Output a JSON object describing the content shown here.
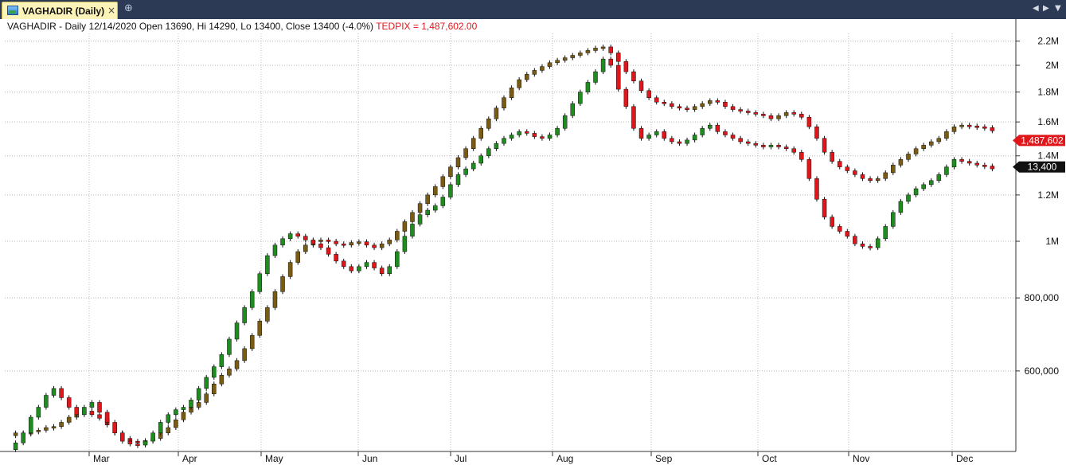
{
  "window": {
    "tab_label": "VAGHADIR (Daily)",
    "close_glyph": "×",
    "new_tab_glyph": "⊕",
    "prev_glyph": "◀",
    "next_glyph": "▶",
    "menu_glyph": "▼"
  },
  "header": {
    "main_text": "VAGHADIR - Daily 12/14/2020 Open 13690, Hi 14290, Lo 13400, Close 13400 (-4.0%)",
    "index_text": "TEDPIX = 1,487,602.00"
  },
  "colors": {
    "up": "#1e8c1e",
    "down": "#e0161b",
    "index_up": "#7a5b12",
    "index_down": "#e0161b",
    "grid": "#b8b8b8",
    "index_badge": "#e0161b",
    "price_badge": "#111111"
  },
  "chart_data": {
    "type": "candlestick",
    "scale": "log",
    "y_ticks": [
      "600,000",
      "800,000",
      "1M",
      "1.2M",
      "1.4M",
      "1.6M",
      "1.8M",
      "2M",
      "2.2M"
    ],
    "y_tick_values": [
      600000,
      800000,
      1000000,
      1200000,
      1400000,
      1600000,
      1800000,
      2000000,
      2200000
    ],
    "x_labels": [
      "Mar",
      "Apr",
      "May",
      "Jun",
      "Jul",
      "Aug",
      "Sep",
      "Oct",
      "Nov",
      "Dec"
    ],
    "last_index_label": "1,487,602",
    "last_price_label": "13,400",
    "series": [
      {
        "name": "TEDPIX",
        "points": [
          [
            0,
            465000
          ],
          [
            4,
            470000
          ],
          [
            8,
            468000
          ],
          [
            12,
            472000
          ],
          [
            16,
            475000
          ],
          [
            20,
            480000
          ],
          [
            24,
            482000
          ],
          [
            28,
            490000
          ],
          [
            32,
            500000
          ],
          [
            36,
            510000
          ],
          [
            40,
            512000
          ],
          [
            44,
            505000
          ],
          [
            48,
            498000
          ],
          [
            52,
            485000
          ],
          [
            56,
            470000
          ],
          [
            60,
            460000
          ],
          [
            64,
            455000
          ],
          [
            68,
            452000
          ],
          [
            72,
            456000
          ],
          [
            76,
            460000
          ],
          [
            80,
            470000
          ],
          [
            84,
            480000
          ],
          [
            88,
            495000
          ],
          [
            92,
            510000
          ],
          [
            96,
            520000
          ],
          [
            100,
            530000
          ],
          [
            104,
            548000
          ],
          [
            108,
            570000
          ],
          [
            112,
            590000
          ],
          [
            116,
            605000
          ],
          [
            120,
            625000
          ],
          [
            124,
            655000
          ],
          [
            128,
            690000
          ],
          [
            132,
            730000
          ],
          [
            136,
            770000
          ],
          [
            140,
            820000
          ],
          [
            144,
            870000
          ],
          [
            148,
            920000
          ],
          [
            152,
            960000
          ],
          [
            156,
            985000
          ],
          [
            160,
            1000000
          ],
          [
            164,
            1005000
          ],
          [
            168,
            1000000
          ],
          [
            172,
            990000
          ],
          [
            176,
            985000
          ],
          [
            180,
            995000
          ],
          [
            184,
            998000
          ],
          [
            188,
            985000
          ],
          [
            192,
            975000
          ],
          [
            196,
            990000
          ],
          [
            200,
            1005000
          ],
          [
            204,
            1040000
          ],
          [
            208,
            1080000
          ],
          [
            212,
            1120000
          ],
          [
            216,
            1160000
          ],
          [
            220,
            1200000
          ],
          [
            224,
            1240000
          ],
          [
            228,
            1290000
          ],
          [
            232,
            1340000
          ],
          [
            236,
            1390000
          ],
          [
            240,
            1440000
          ],
          [
            244,
            1500000
          ],
          [
            248,
            1560000
          ],
          [
            252,
            1620000
          ],
          [
            256,
            1690000
          ],
          [
            260,
            1760000
          ],
          [
            264,
            1830000
          ],
          [
            268,
            1890000
          ],
          [
            272,
            1930000
          ],
          [
            276,
            1960000
          ],
          [
            280,
            1990000
          ],
          [
            284,
            2020000
          ],
          [
            288,
            2040000
          ],
          [
            292,
            2060000
          ],
          [
            296,
            2080000
          ],
          [
            300,
            2100000
          ],
          [
            304,
            2120000
          ],
          [
            308,
            2140000
          ],
          [
            312,
            2150000
          ],
          [
            316,
            2100000
          ],
          [
            320,
            2030000
          ],
          [
            324,
            1950000
          ],
          [
            328,
            1880000
          ],
          [
            332,
            1810000
          ],
          [
            336,
            1760000
          ],
          [
            340,
            1730000
          ],
          [
            344,
            1720000
          ],
          [
            348,
            1700000
          ],
          [
            352,
            1690000
          ],
          [
            356,
            1680000
          ],
          [
            360,
            1700000
          ],
          [
            364,
            1720000
          ],
          [
            368,
            1740000
          ],
          [
            372,
            1730000
          ],
          [
            376,
            1700000
          ],
          [
            380,
            1680000
          ],
          [
            384,
            1670000
          ],
          [
            388,
            1660000
          ],
          [
            392,
            1650000
          ],
          [
            396,
            1640000
          ],
          [
            400,
            1620000
          ],
          [
            404,
            1640000
          ],
          [
            408,
            1660000
          ],
          [
            412,
            1650000
          ],
          [
            416,
            1630000
          ],
          [
            420,
            1570000
          ],
          [
            424,
            1500000
          ],
          [
            428,
            1420000
          ],
          [
            432,
            1370000
          ],
          [
            436,
            1340000
          ],
          [
            440,
            1320000
          ],
          [
            444,
            1300000
          ],
          [
            448,
            1280000
          ],
          [
            452,
            1270000
          ],
          [
            456,
            1280000
          ],
          [
            460,
            1310000
          ],
          [
            464,
            1350000
          ],
          [
            468,
            1380000
          ],
          [
            472,
            1410000
          ],
          [
            476,
            1440000
          ],
          [
            480,
            1460000
          ],
          [
            484,
            1480000
          ],
          [
            488,
            1500000
          ],
          [
            492,
            1540000
          ],
          [
            496,
            1570000
          ],
          [
            500,
            1580000
          ],
          [
            504,
            1575000
          ],
          [
            508,
            1570000
          ],
          [
            512,
            1565000
          ],
          [
            516,
            1545000
          ]
        ]
      },
      {
        "name": "VAGHADIR",
        "points": [
          [
            0,
            440000
          ],
          [
            4,
            452000
          ],
          [
            8,
            470000
          ],
          [
            12,
            500000
          ],
          [
            16,
            520000
          ],
          [
            20,
            545000
          ],
          [
            24,
            560000
          ],
          [
            28,
            540000
          ],
          [
            32,
            520000
          ],
          [
            36,
            505000
          ],
          [
            40,
            520000
          ],
          [
            44,
            530000
          ],
          [
            48,
            510000
          ],
          [
            52,
            490000
          ],
          [
            56,
            470000
          ],
          [
            60,
            455000
          ],
          [
            64,
            450000
          ],
          [
            68,
            448000
          ],
          [
            72,
            455000
          ],
          [
            76,
            470000
          ],
          [
            80,
            490000
          ],
          [
            84,
            505000
          ],
          [
            88,
            515000
          ],
          [
            92,
            520000
          ],
          [
            96,
            535000
          ],
          [
            100,
            560000
          ],
          [
            104,
            585000
          ],
          [
            108,
            610000
          ],
          [
            112,
            640000
          ],
          [
            116,
            680000
          ],
          [
            120,
            725000
          ],
          [
            124,
            770000
          ],
          [
            128,
            820000
          ],
          [
            132,
            880000
          ],
          [
            136,
            945000
          ],
          [
            140,
            985000
          ],
          [
            144,
            1010000
          ],
          [
            148,
            1030000
          ],
          [
            152,
            1020000
          ],
          [
            156,
            1005000
          ],
          [
            160,
            990000
          ],
          [
            164,
            975000
          ],
          [
            168,
            950000
          ],
          [
            172,
            925000
          ],
          [
            176,
            905000
          ],
          [
            180,
            890000
          ],
          [
            184,
            905000
          ],
          [
            188,
            920000
          ],
          [
            192,
            900000
          ],
          [
            196,
            880000
          ],
          [
            200,
            905000
          ],
          [
            204,
            960000
          ],
          [
            208,
            1020000
          ],
          [
            212,
            1070000
          ],
          [
            216,
            1110000
          ],
          [
            220,
            1130000
          ],
          [
            224,
            1150000
          ],
          [
            228,
            1190000
          ],
          [
            232,
            1250000
          ],
          [
            236,
            1300000
          ],
          [
            240,
            1330000
          ],
          [
            244,
            1360000
          ],
          [
            248,
            1400000
          ],
          [
            252,
            1440000
          ],
          [
            256,
            1470000
          ],
          [
            260,
            1500000
          ],
          [
            264,
            1520000
          ],
          [
            268,
            1540000
          ],
          [
            272,
            1530000
          ],
          [
            276,
            1510000
          ],
          [
            280,
            1500000
          ],
          [
            284,
            1520000
          ],
          [
            288,
            1560000
          ],
          [
            292,
            1640000
          ],
          [
            296,
            1720000
          ],
          [
            300,
            1800000
          ],
          [
            304,
            1870000
          ],
          [
            308,
            1950000
          ],
          [
            312,
            2050000
          ],
          [
            316,
            2000000
          ],
          [
            320,
            1820000
          ],
          [
            324,
            1700000
          ],
          [
            328,
            1560000
          ],
          [
            332,
            1500000
          ],
          [
            336,
            1520000
          ],
          [
            340,
            1540000
          ],
          [
            344,
            1500000
          ],
          [
            348,
            1480000
          ],
          [
            352,
            1470000
          ],
          [
            356,
            1490000
          ],
          [
            360,
            1520000
          ],
          [
            364,
            1560000
          ],
          [
            368,
            1580000
          ],
          [
            372,
            1540000
          ],
          [
            376,
            1520000
          ],
          [
            380,
            1500000
          ],
          [
            384,
            1480000
          ],
          [
            388,
            1470000
          ],
          [
            392,
            1460000
          ],
          [
            396,
            1450000
          ],
          [
            400,
            1460000
          ],
          [
            404,
            1450000
          ],
          [
            408,
            1440000
          ],
          [
            412,
            1420000
          ],
          [
            416,
            1380000
          ],
          [
            420,
            1280000
          ],
          [
            424,
            1180000
          ],
          [
            428,
            1100000
          ],
          [
            432,
            1060000
          ],
          [
            436,
            1040000
          ],
          [
            440,
            1020000
          ],
          [
            444,
            990000
          ],
          [
            448,
            980000
          ],
          [
            452,
            975000
          ],
          [
            456,
            1010000
          ],
          [
            460,
            1060000
          ],
          [
            464,
            1120000
          ],
          [
            468,
            1170000
          ],
          [
            472,
            1200000
          ],
          [
            476,
            1230000
          ],
          [
            480,
            1250000
          ],
          [
            484,
            1270000
          ],
          [
            488,
            1300000
          ],
          [
            492,
            1340000
          ],
          [
            496,
            1380000
          ],
          [
            500,
            1370000
          ],
          [
            504,
            1360000
          ],
          [
            508,
            1350000
          ],
          [
            512,
            1345000
          ],
          [
            516,
            1330000
          ]
        ]
      }
    ],
    "last_index_value": 1487602,
    "last_price_value": 13400,
    "x_count": 520
  }
}
